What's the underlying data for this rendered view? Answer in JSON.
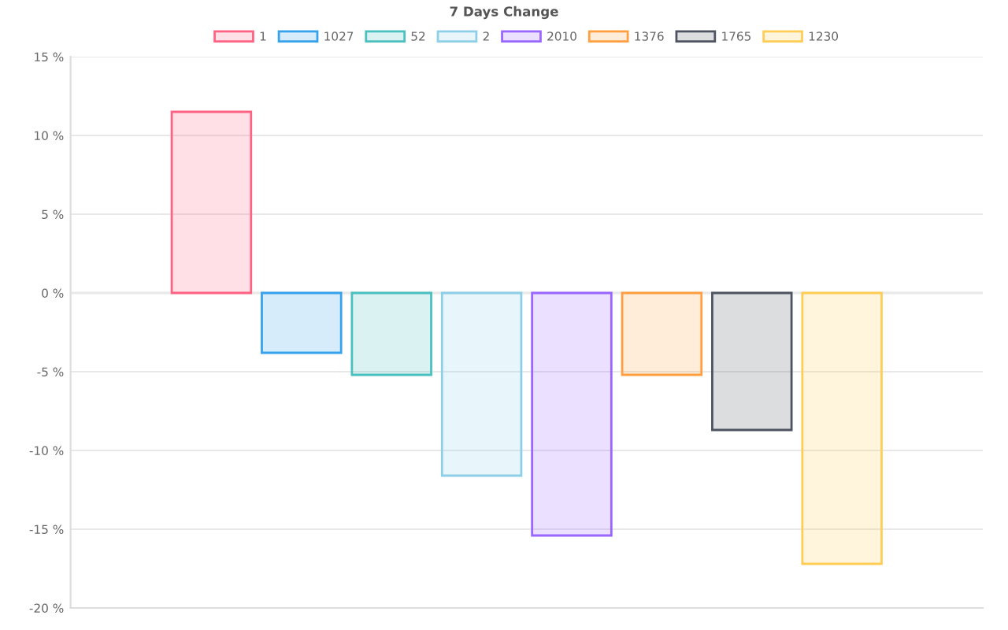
{
  "chart_data": {
    "type": "bar",
    "title": "7 Days Change",
    "categories": [
      null
    ],
    "series": [
      {
        "name": "1",
        "color": "#ff6384",
        "values": [
          11.5
        ]
      },
      {
        "name": "1027",
        "color": "#36a2eb",
        "values": [
          -3.8
        ]
      },
      {
        "name": "52",
        "color": "#4bc0c0",
        "values": [
          -5.2
        ]
      },
      {
        "name": "2",
        "color": "#8ecfe8",
        "values": [
          -11.6
        ]
      },
      {
        "name": "2010",
        "color": "#9966ff",
        "values": [
          -15.4
        ]
      },
      {
        "name": "1376",
        "color": "#ff9f40",
        "values": [
          -5.2
        ]
      },
      {
        "name": "1765",
        "color": "#4d5360",
        "values": [
          -8.7
        ]
      },
      {
        "name": "1230",
        "color": "#ffcd56",
        "values": [
          -17.2
        ]
      }
    ],
    "ylim": [
      -20,
      15
    ],
    "yticks": [
      {
        "value": -20,
        "label": "-20 %"
      },
      {
        "value": -15,
        "label": "-15 %"
      },
      {
        "value": -10,
        "label": "-10 %"
      },
      {
        "value": -5,
        "label": "-5 %"
      },
      {
        "value": 0,
        "label": "0 %"
      },
      {
        "value": 5,
        "label": "5 %"
      },
      {
        "value": 10,
        "label": "10 %"
      },
      {
        "value": 15,
        "label": "15 %"
      }
    ],
    "grid": "y",
    "legend": "top"
  }
}
